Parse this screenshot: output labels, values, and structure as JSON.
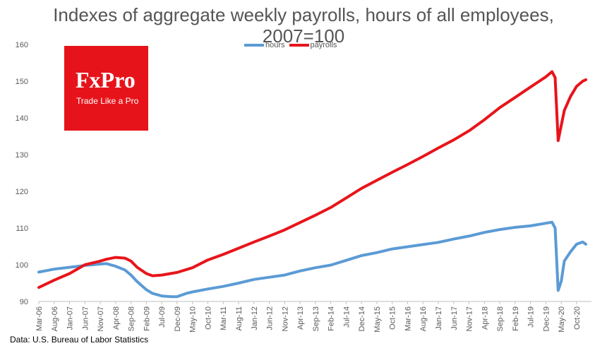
{
  "title_line1": "Indexes of aggregate weekly payrolls, hours of all employees,",
  "title_line2": "2007=100",
  "logo": {
    "brand": "FxPro",
    "tagline": "Trade Like a Pro",
    "color": "#e6141a"
  },
  "source": "Data: U.S. Bureau of Labor Statistics",
  "chart_data": {
    "type": "line",
    "title": "Indexes of aggregate weekly payrolls, hours of all employees, 2007=100",
    "ylim": [
      90,
      160
    ],
    "yticks": [
      90,
      100,
      110,
      120,
      130,
      140,
      150,
      160
    ],
    "grid": false,
    "legend_position": "top-center",
    "x_tick_labels": [
      "Mar-06",
      "Aug-06",
      "Jan-07",
      "Jun-07",
      "Nov-07",
      "Apr-08",
      "Sep-08",
      "Feb-09",
      "Jul-09",
      "Dec-09",
      "May-10",
      "Oct-10",
      "Mar-11",
      "Aug-11",
      "Jan-12",
      "Jun-12",
      "Nov-12",
      "Apr-13",
      "Sep-13",
      "Feb-14",
      "Jul-14",
      "Dec-14",
      "May-15",
      "Oct-15",
      "Mar-16",
      "Aug-16",
      "Jan-17",
      "Jun-17",
      "Nov-17",
      "Apr-18",
      "Sep-18",
      "Feb-19",
      "Jul-19",
      "Dec-19",
      "May-20",
      "Oct-20"
    ],
    "series": [
      {
        "name": "hours",
        "color": "#5b9bd5",
        "points": [
          [
            "Mar-06",
            98.0
          ],
          [
            "Aug-06",
            98.8
          ],
          [
            "Jan-07",
            99.3
          ],
          [
            "Jun-07",
            99.8
          ],
          [
            "Nov-07",
            100.2
          ],
          [
            "Jan-08",
            100.3
          ],
          [
            "Apr-08",
            99.6
          ],
          [
            "Jul-08",
            98.6
          ],
          [
            "Sep-08",
            97.2
          ],
          [
            "Nov-08",
            95.4
          ],
          [
            "Feb-09",
            93.2
          ],
          [
            "Apr-09",
            92.2
          ],
          [
            "Jul-09",
            91.5
          ],
          [
            "Oct-09",
            91.3
          ],
          [
            "Dec-09",
            91.3
          ],
          [
            "Mar-10",
            92.2
          ],
          [
            "May-10",
            92.6
          ],
          [
            "Oct-10",
            93.4
          ],
          [
            "Mar-11",
            94.1
          ],
          [
            "Aug-11",
            95.0
          ],
          [
            "Jan-12",
            96.0
          ],
          [
            "Jun-12",
            96.6
          ],
          [
            "Nov-12",
            97.2
          ],
          [
            "Apr-13",
            98.3
          ],
          [
            "Sep-13",
            99.2
          ],
          [
            "Feb-14",
            99.9
          ],
          [
            "Jul-14",
            101.2
          ],
          [
            "Dec-14",
            102.5
          ],
          [
            "May-15",
            103.3
          ],
          [
            "Oct-15",
            104.3
          ],
          [
            "Mar-16",
            104.9
          ],
          [
            "Aug-16",
            105.5
          ],
          [
            "Jan-17",
            106.1
          ],
          [
            "Jun-17",
            107.0
          ],
          [
            "Nov-17",
            107.8
          ],
          [
            "Apr-18",
            108.8
          ],
          [
            "Sep-18",
            109.6
          ],
          [
            "Feb-19",
            110.2
          ],
          [
            "Jul-19",
            110.6
          ],
          [
            "Dec-19",
            111.3
          ],
          [
            "Feb-20",
            111.6
          ],
          [
            "Mar-20",
            110.0
          ],
          [
            "Apr-20",
            93.0
          ],
          [
            "May-20",
            95.5
          ],
          [
            "Jun-20",
            101.0
          ],
          [
            "Aug-20",
            103.5
          ],
          [
            "Oct-20",
            105.6
          ],
          [
            "Dec-20",
            106.2
          ],
          [
            "Jan-21",
            105.6
          ]
        ]
      },
      {
        "name": "payrolls",
        "color": "#e8141a",
        "points": [
          [
            "Mar-06",
            93.8
          ],
          [
            "Aug-06",
            95.8
          ],
          [
            "Jan-07",
            97.6
          ],
          [
            "Jun-07",
            100.0
          ],
          [
            "Nov-07",
            101.0
          ],
          [
            "Jan-08",
            101.5
          ],
          [
            "Apr-08",
            102.0
          ],
          [
            "Jul-08",
            101.8
          ],
          [
            "Sep-08",
            101.0
          ],
          [
            "Nov-08",
            99.3
          ],
          [
            "Feb-09",
            97.6
          ],
          [
            "Apr-09",
            97.0
          ],
          [
            "Jul-09",
            97.2
          ],
          [
            "Dec-09",
            97.9
          ],
          [
            "May-10",
            99.2
          ],
          [
            "Oct-10",
            101.3
          ],
          [
            "Mar-11",
            102.8
          ],
          [
            "Aug-11",
            104.5
          ],
          [
            "Jan-12",
            106.2
          ],
          [
            "Jun-12",
            107.8
          ],
          [
            "Nov-12",
            109.5
          ],
          [
            "Apr-13",
            111.5
          ],
          [
            "Sep-13",
            113.5
          ],
          [
            "Feb-14",
            115.6
          ],
          [
            "Jul-14",
            118.2
          ],
          [
            "Dec-14",
            120.8
          ],
          [
            "May-15",
            123.0
          ],
          [
            "Oct-15",
            125.2
          ],
          [
            "Mar-16",
            127.3
          ],
          [
            "Aug-16",
            129.5
          ],
          [
            "Jan-17",
            131.8
          ],
          [
            "Jun-17",
            134.0
          ],
          [
            "Nov-17",
            136.5
          ],
          [
            "Apr-18",
            139.5
          ],
          [
            "Sep-18",
            142.8
          ],
          [
            "Feb-19",
            145.6
          ],
          [
            "Jul-19",
            148.4
          ],
          [
            "Dec-19",
            151.2
          ],
          [
            "Feb-20",
            152.6
          ],
          [
            "Mar-20",
            151.0
          ],
          [
            "Apr-20",
            133.8
          ],
          [
            "Jun-20",
            142.0
          ],
          [
            "Aug-20",
            145.8
          ],
          [
            "Oct-20",
            148.6
          ],
          [
            "Dec-20",
            150.0
          ],
          [
            "Jan-21",
            150.4
          ]
        ]
      }
    ]
  }
}
